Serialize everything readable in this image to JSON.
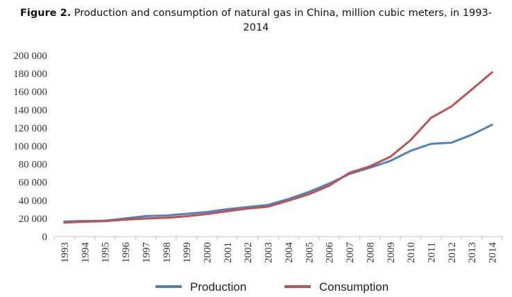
{
  "figure": {
    "label": "Figure 2.",
    "caption_line1": " Production and consumption of natural gas in China, million cubic meters, in 1993-",
    "caption_line2": "2014"
  },
  "colors": {
    "production": "#4F81BD",
    "consumption": "#C0504D",
    "axis": "#BFBFBF"
  },
  "chart_data": {
    "type": "line",
    "title": "Production and consumption of natural gas in China, million cubic meters, in 1993-2014",
    "xlabel": "",
    "ylabel": "",
    "categories": [
      "1993",
      "1994",
      "1995",
      "1996",
      "1997",
      "1998",
      "1999",
      "2000",
      "2001",
      "2002",
      "2003",
      "2004",
      "2005",
      "2006",
      "2007",
      "2008",
      "2009",
      "2010",
      "2011",
      "2012",
      "2013",
      "2014"
    ],
    "ylim": [
      0,
      200000
    ],
    "yticks": [
      0,
      20000,
      40000,
      60000,
      80000,
      100000,
      120000,
      140000,
      160000,
      180000,
      200000
    ],
    "ytick_labels": [
      "0",
      "20 000",
      "40 000",
      "60 000",
      "80 000",
      "100 000",
      "120 000",
      "140 000",
      "160 000",
      "180 000",
      "200 000"
    ],
    "grid": false,
    "legend_position": "bottom",
    "series": [
      {
        "name": "Production",
        "color": "#4F81BD",
        "values": [
          16700,
          17300,
          17600,
          20100,
          22700,
          23300,
          25200,
          27200,
          30300,
          32700,
          35000,
          41500,
          49300,
          58600,
          69200,
          76100,
          83600,
          94800,
          102500,
          103700,
          112500,
          123500
        ]
      },
      {
        "name": "Consumption",
        "color": "#C0504D",
        "values": [
          15500,
          16500,
          17000,
          18800,
          20000,
          20800,
          22500,
          24900,
          28100,
          30900,
          33100,
          39700,
          46800,
          56100,
          70500,
          77600,
          88100,
          106600,
          131100,
          143700,
          162400,
          181400
        ]
      }
    ]
  }
}
